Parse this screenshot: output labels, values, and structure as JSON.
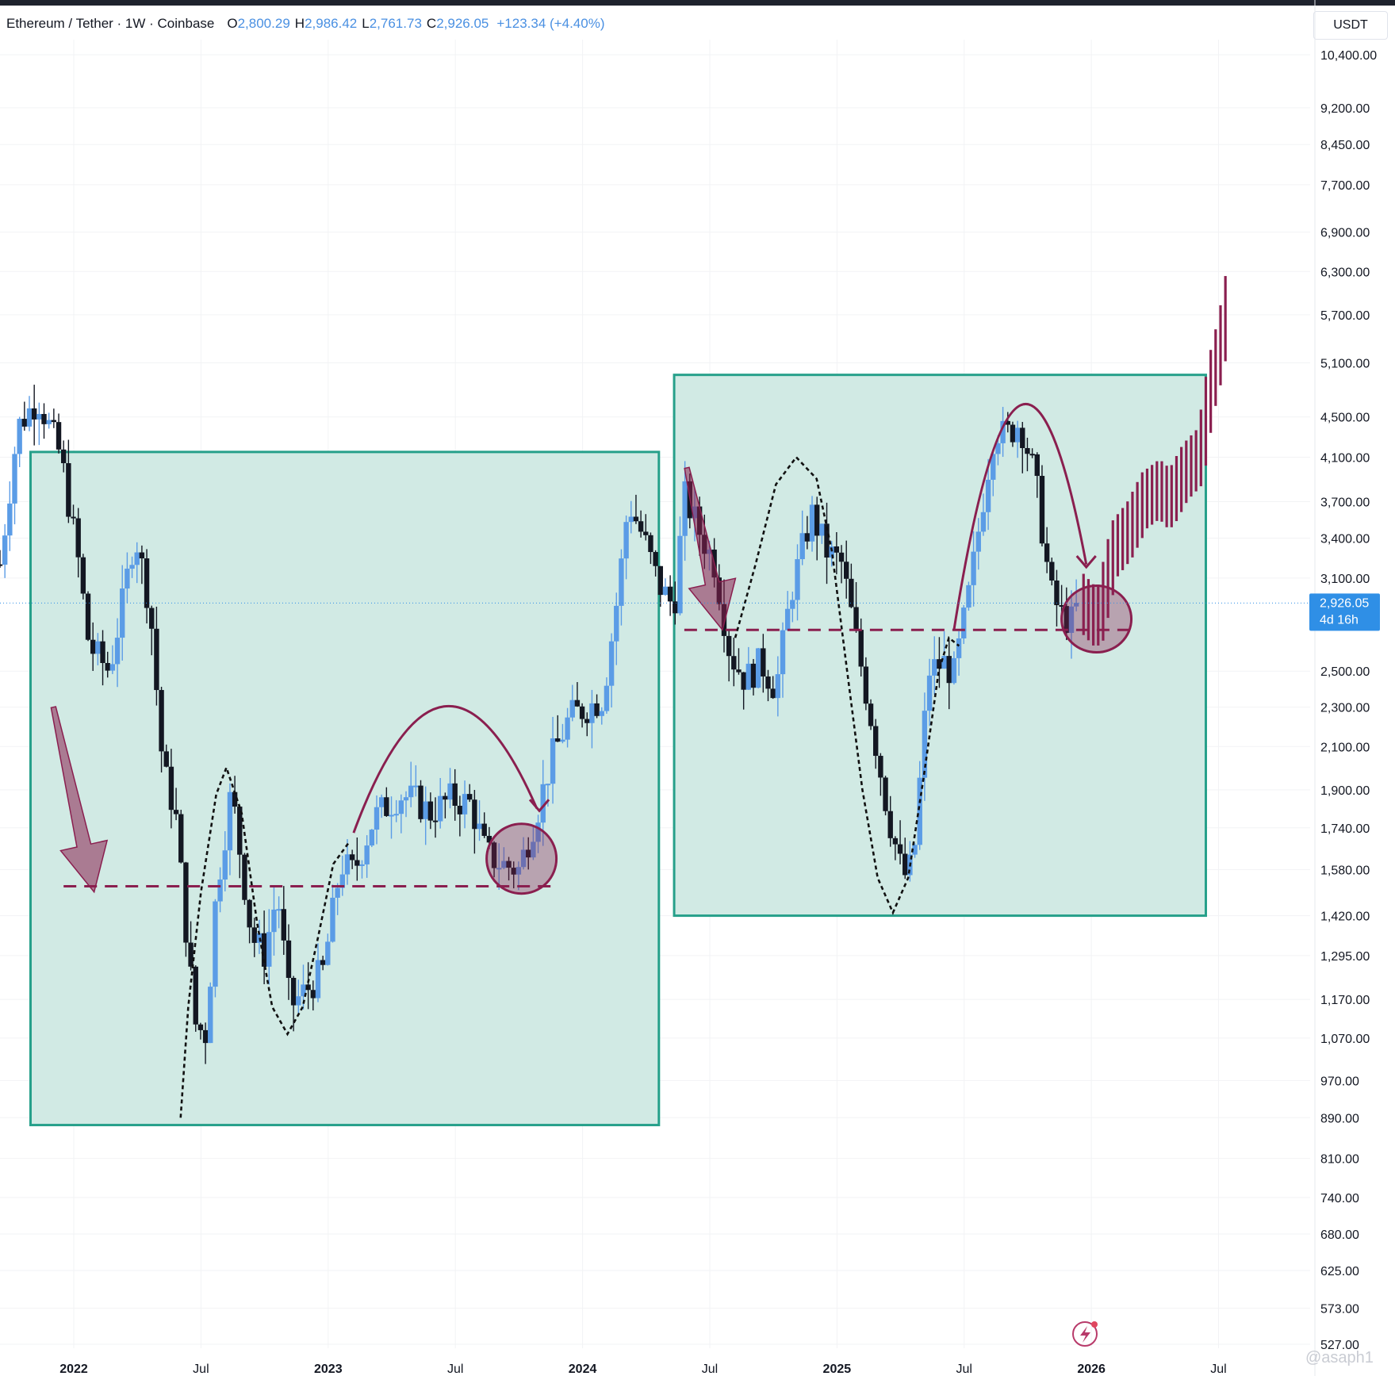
{
  "header": {
    "symbol": "Ethereum / Tether · 1W · Coinbase",
    "o_label": "O",
    "o_value": "2,800.29",
    "h_label": "H",
    "h_value": "2,986.42",
    "l_label": "L",
    "l_value": "2,761.73",
    "c_label": "C",
    "c_value": "2,926.05",
    "change": "+123.34 (+4.40%)"
  },
  "currency_button": "USDT",
  "price_badge": {
    "price": "2,926.05",
    "countdown": "4d 16h"
  },
  "watermark": "@asaph1",
  "colors": {
    "up": "#5b9ce6",
    "down": "#131722",
    "box_fill": "#cfe9e3",
    "box_stroke": "#26a08a",
    "annotation": "#8a1f4f",
    "badge": "#2f8fe6"
  },
  "chart_data": {
    "type": "candlestick",
    "title": "Ethereum / Tether · 1W · Coinbase",
    "y_scale": "log",
    "ylim": [
      510,
      11000
    ],
    "y_ticks": [
      "10,400.00",
      "9,200.00",
      "8,450.00",
      "7,700.00",
      "6,900.00",
      "6,300.00",
      "5,700.00",
      "5,100.00",
      "4,500.00",
      "4,100.00",
      "3,700.00",
      "3,400.00",
      "3,100.00",
      "2,500.00",
      "2,300.00",
      "2,100.00",
      "1,900.00",
      "1,740.00",
      "1,580.00",
      "1,420.00",
      "1,295.00",
      "1,170.00",
      "1,070.00",
      "970.00",
      "890.00",
      "810.00",
      "740.00",
      "680.00",
      "625.00",
      "573.00",
      "527.00"
    ],
    "x_ticks": [
      {
        "label": "2022",
        "bold": true,
        "x": 2022.0
      },
      {
        "label": "Jul",
        "bold": false,
        "x": 2022.5
      },
      {
        "label": "2023",
        "bold": true,
        "x": 2023.0
      },
      {
        "label": "Jul",
        "bold": false,
        "x": 2023.5
      },
      {
        "label": "2024",
        "bold": true,
        "x": 2024.0
      },
      {
        "label": "Jul",
        "bold": false,
        "x": 2024.5
      },
      {
        "label": "2025",
        "bold": true,
        "x": 2025.0
      },
      {
        "label": "Jul",
        "bold": false,
        "x": 2025.5
      },
      {
        "label": "2026",
        "bold": true,
        "x": 2026.0
      },
      {
        "label": "Jul",
        "bold": false,
        "x": 2026.5
      }
    ],
    "xlim": [
      2021.71,
      2026.86
    ],
    "last_price": 2926.05,
    "path": [
      [
        2021.71,
        3200
      ],
      [
        2021.78,
        4400
      ],
      [
        2021.86,
        4700
      ],
      [
        2021.95,
        4100
      ],
      [
        2022.02,
        3200
      ],
      [
        2022.06,
        2650
      ],
      [
        2022.14,
        2500
      ],
      [
        2022.2,
        3000
      ],
      [
        2022.24,
        3450
      ],
      [
        2022.3,
        2900
      ],
      [
        2022.35,
        2000
      ],
      [
        2022.4,
        1800
      ],
      [
        2022.45,
        1300
      ],
      [
        2022.48,
        1100
      ],
      [
        2022.52,
        1080
      ],
      [
        2022.56,
        1500
      ],
      [
        2022.62,
        1900
      ],
      [
        2022.66,
        1600
      ],
      [
        2022.7,
        1350
      ],
      [
        2022.75,
        1300
      ],
      [
        2022.8,
        1500
      ],
      [
        2022.85,
        1150
      ],
      [
        2022.92,
        1200
      ],
      [
        2022.98,
        1250
      ],
      [
        2023.05,
        1600
      ],
      [
        2023.1,
        1570
      ],
      [
        2023.18,
        1780
      ],
      [
        2023.28,
        1880
      ],
      [
        2023.35,
        1850
      ],
      [
        2023.4,
        1800
      ],
      [
        2023.48,
        1860
      ],
      [
        2023.56,
        1840
      ],
      [
        2023.62,
        1640
      ],
      [
        2023.68,
        1600
      ],
      [
        2023.75,
        1580
      ],
      [
        2023.82,
        1800
      ],
      [
        2023.88,
        2050
      ],
      [
        2023.95,
        2250
      ],
      [
        2024.02,
        2300
      ],
      [
        2024.08,
        2350
      ],
      [
        2024.14,
        3000
      ],
      [
        2024.18,
        3700
      ],
      [
        2024.24,
        3400
      ],
      [
        2024.3,
        3050
      ],
      [
        2024.36,
        2900
      ],
      [
        2024.4,
        3750
      ],
      [
        2024.46,
        3450
      ],
      [
        2024.52,
        3200
      ],
      [
        2024.58,
        2600
      ],
      [
        2024.64,
        2450
      ],
      [
        2024.7,
        2550
      ],
      [
        2024.76,
        2400
      ],
      [
        2024.82,
        3000
      ],
      [
        2024.9,
        3600
      ],
      [
        2024.96,
        3300
      ],
      [
        2025.02,
        3200
      ],
      [
        2025.08,
        2650
      ],
      [
        2025.14,
        2200
      ],
      [
        2025.2,
        1800
      ],
      [
        2025.26,
        1550
      ],
      [
        2025.3,
        1600
      ],
      [
        2025.36,
        2500
      ],
      [
        2025.42,
        2550
      ],
      [
        2025.46,
        2480
      ],
      [
        2025.52,
        3000
      ],
      [
        2025.58,
        3800
      ],
      [
        2025.62,
        4400
      ],
      [
        2025.66,
        4300
      ],
      [
        2025.72,
        4450
      ],
      [
        2025.78,
        3900
      ],
      [
        2025.84,
        3000
      ],
      [
        2025.88,
        2850
      ],
      [
        2025.92,
        2800
      ],
      [
        2025.95,
        2926
      ]
    ],
    "projection_path": [
      [
        2025.95,
        2926
      ],
      [
        2026.02,
        2800
      ],
      [
        2026.08,
        3300
      ],
      [
        2026.14,
        3450
      ],
      [
        2026.2,
        3700
      ],
      [
        2026.26,
        3800
      ],
      [
        2026.3,
        3700
      ],
      [
        2026.36,
        3950
      ],
      [
        2026.42,
        4100
      ],
      [
        2026.46,
        4800
      ],
      [
        2026.5,
        5300
      ],
      [
        2026.54,
        6100
      ]
    ],
    "boxes": [
      {
        "x0": 2021.83,
        "x1": 2024.3,
        "y0": 875,
        "y1": 4150
      },
      {
        "x0": 2024.36,
        "x1": 2026.45,
        "y0": 1420,
        "y1": 4960
      }
    ],
    "support_lines": [
      {
        "x0": 2021.96,
        "x1": 2023.88,
        "y": 1520
      },
      {
        "x0": 2024.4,
        "x1": 2026.18,
        "y": 2750
      }
    ]
  }
}
